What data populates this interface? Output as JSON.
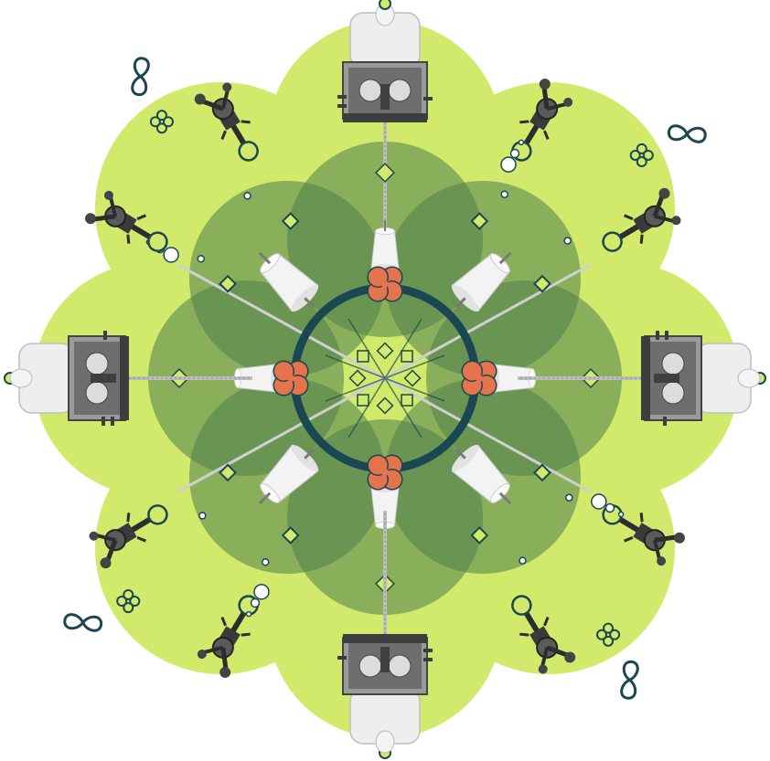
{
  "colors": {
    "background": "#ffffff",
    "cloud": "#d2ea6b",
    "petal": "#4e7d4c",
    "ring": "#1b4752",
    "flower": "#e4734e",
    "flower_outline": "#1b4752",
    "diamond_fill": "#d2ea6b",
    "dot_stroke": "#1b4752",
    "machine_body": "#8a8a8a",
    "machine_dark": "#3d3d3d",
    "machine_roll": "#e8e8e8",
    "yarn": "#cfcfcf"
  },
  "icons": {
    "center": "orange-four-petal-flower-icon",
    "machine": "textile-roller-machine-icon",
    "arm": "robotic-arm-icon",
    "spindle": "yarn-spindle-icon",
    "infinity": "infinity-icon",
    "clover": "four-leaf-clover-icon"
  },
  "symmetry": {
    "axes": 4,
    "rotations_deg": [
      0,
      90,
      180,
      270
    ]
  }
}
